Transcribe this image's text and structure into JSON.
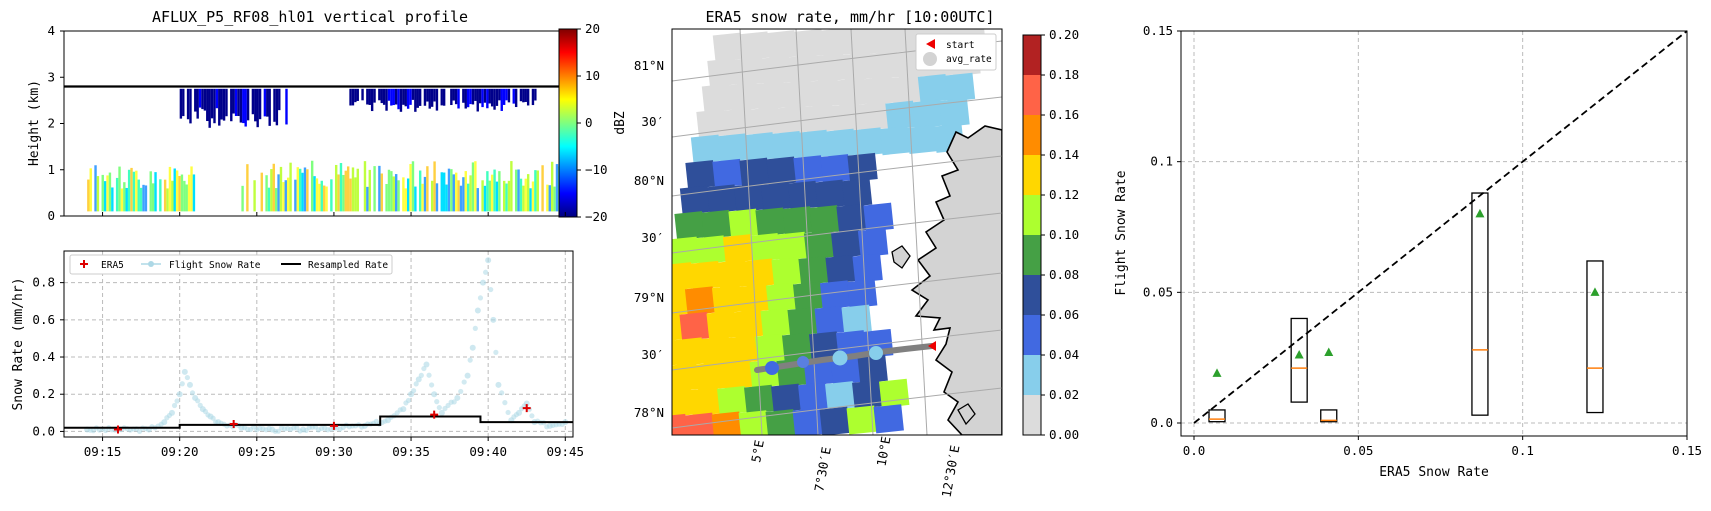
{
  "chart_data": [
    {
      "type": "heatmap",
      "title": "AFLUX_P5_RF08_hl01 vertical profile",
      "ylabel": "Height (km)",
      "ylim": [
        0,
        4
      ],
      "yticks": [
        "0",
        "1",
        "2",
        "3",
        "4"
      ],
      "colorbar": {
        "label": "dBZ",
        "range": [
          -20,
          20
        ],
        "ticks": [
          "20",
          "10",
          "0",
          "−10",
          "−20"
        ],
        "colormap": [
          "#00007f",
          "#0000ff",
          "#007fff",
          "#00ffff",
          "#7fff7f",
          "#ffff00",
          "#ff7f00",
          "#ff0000",
          "#7f0000"
        ]
      },
      "surface_height_km": 2.8,
      "echo_regions": [
        {
          "layer": "upper",
          "x_start": "09:20",
          "x_end": "09:27",
          "top_km": 2.75,
          "bottom_km": 1.9,
          "dBZ": -17
        },
        {
          "layer": "upper",
          "x_start": "09:31",
          "x_end": "09:43",
          "top_km": 2.75,
          "bottom_km": 2.25,
          "dBZ": -17
        },
        {
          "layer": "lower",
          "x_start": "09:14",
          "x_end": "09:21",
          "top_km": 1.1,
          "bottom_km": 0.1,
          "dBZ": 2
        },
        {
          "layer": "lower",
          "x_start": "09:24",
          "x_end": "09:45",
          "top_km": 1.2,
          "bottom_km": 0.1,
          "dBZ": 3
        }
      ]
    },
    {
      "type": "line",
      "xlabel": "",
      "ylabel": "Snow Rate (mm/hr)",
      "xlim": [
        "09:12:30",
        "09:45:30"
      ],
      "xticks": [
        "09:15",
        "09:20",
        "09:25",
        "09:30",
        "09:35",
        "09:40",
        "09:45"
      ],
      "ylim": [
        -0.03,
        0.97
      ],
      "yticks": [
        "0.0",
        "0.2",
        "0.4",
        "0.6",
        "0.8"
      ],
      "legend": {
        "placement": "top-left",
        "entries": [
          "ERA5",
          "Flight Snow Rate",
          "Resampled Rate"
        ]
      },
      "series": [
        {
          "name": "ERA5",
          "style": "plus",
          "color": "#dd0000",
          "x": [
            "09:16:00",
            "09:23:30",
            "09:30:00",
            "09:36:30",
            "09:42:30"
          ],
          "y": [
            0.01,
            0.04,
            0.03,
            0.09,
            0.125
          ]
        },
        {
          "name": "Resampled Rate",
          "style": "step",
          "color": "#000000",
          "x": [
            "09:12:30",
            "09:20:00",
            "09:33:00",
            "09:39:30",
            "09:45:30"
          ],
          "y": [
            0.02,
            0.035,
            0.08,
            0.05,
            0.05
          ]
        },
        {
          "name": "Flight Snow Rate",
          "style": "points",
          "color": "#add8e6",
          "x": [
            "09:14:00",
            "09:16:00",
            "09:18:00",
            "09:19:00",
            "09:19:30",
            "09:20:00",
            "09:20:20",
            "09:20:40",
            "09:21:00",
            "09:21:30",
            "09:22:00",
            "09:22:30",
            "09:24:00",
            "09:26:00",
            "09:28:00",
            "09:30:00",
            "09:32:00",
            "09:33:30",
            "09:34:30",
            "09:35:00",
            "09:35:30",
            "09:36:00",
            "09:36:30",
            "09:37:00",
            "09:38:00",
            "09:38:40",
            "09:39:00",
            "09:39:20",
            "09:39:40",
            "09:40:00",
            "09:40:20",
            "09:40:40",
            "09:41:30",
            "09:42:00",
            "09:42:30",
            "09:43:00",
            "09:44:00",
            "09:45:00"
          ],
          "y": [
            0.01,
            0.01,
            0.01,
            0.05,
            0.1,
            0.2,
            0.32,
            0.25,
            0.18,
            0.12,
            0.08,
            0.05,
            0.02,
            0.01,
            0.01,
            0.02,
            0.03,
            0.06,
            0.12,
            0.2,
            0.28,
            0.36,
            0.2,
            0.1,
            0.18,
            0.3,
            0.45,
            0.65,
            0.8,
            0.92,
            0.6,
            0.25,
            0.06,
            0.1,
            0.15,
            0.05,
            0.03,
            0.05
          ]
        }
      ]
    },
    {
      "type": "heatmap",
      "title": "ERA5 snow rate, mm/hr [10:00UTC]",
      "lat_ticks": [
        "81°N",
        "30′",
        "80°N",
        "30′",
        "79°N",
        "30′",
        "78°N"
      ],
      "lon_ticks": [
        "5°E",
        "7°30′E",
        "10°E",
        "12°30′E"
      ],
      "legend": {
        "placement": "top-right",
        "entries": [
          "start",
          "avg_rate"
        ]
      },
      "colorbar": {
        "range": [
          0.0,
          0.2
        ],
        "ticks": [
          "0.00",
          "0.02",
          "0.04",
          "0.06",
          "0.08",
          "0.10",
          "0.12",
          "0.14",
          "0.16",
          "0.18",
          "0.20"
        ],
        "colors": [
          "#dcdcdc",
          "#87ceeb",
          "#4169e1",
          "#2f4f9a",
          "#45a045",
          "#adff2f",
          "#ffd700",
          "#ff8c00",
          "#ff6347",
          "#b22222"
        ]
      },
      "colors": {
        "start": "#ee0000",
        "track": "#808080",
        "land": "#d3d3d3"
      }
    },
    {
      "type": "box",
      "xlabel": "ERA5 Snow Rate",
      "ylabel": "Flight Snow Rate",
      "xlim": [
        -0.004,
        0.15
      ],
      "ylim": [
        -0.004,
        0.15
      ],
      "xticks": [
        "0.0",
        "0.05",
        "0.1",
        "0.15"
      ],
      "yticks": [
        "0.0",
        "0.05",
        "0.1",
        "0.15"
      ],
      "boxes": [
        {
          "x": 0.007,
          "q1": 0.0005,
          "median": 0.0015,
          "q3": 0.005,
          "mean": 0.019
        },
        {
          "x": 0.032,
          "q1": 0.008,
          "median": 0.021,
          "q3": 0.04,
          "mean": 0.026
        },
        {
          "x": 0.041,
          "q1": 0.0005,
          "median": 0.001,
          "q3": 0.005,
          "mean": 0.027
        },
        {
          "x": 0.087,
          "q1": 0.003,
          "median": 0.028,
          "q3": 0.088,
          "mean": 0.08
        },
        {
          "x": 0.122,
          "q1": 0.004,
          "median": 0.021,
          "q3": 0.062,
          "mean": 0.05
        }
      ],
      "reference_line": "1:1 dashed"
    }
  ]
}
